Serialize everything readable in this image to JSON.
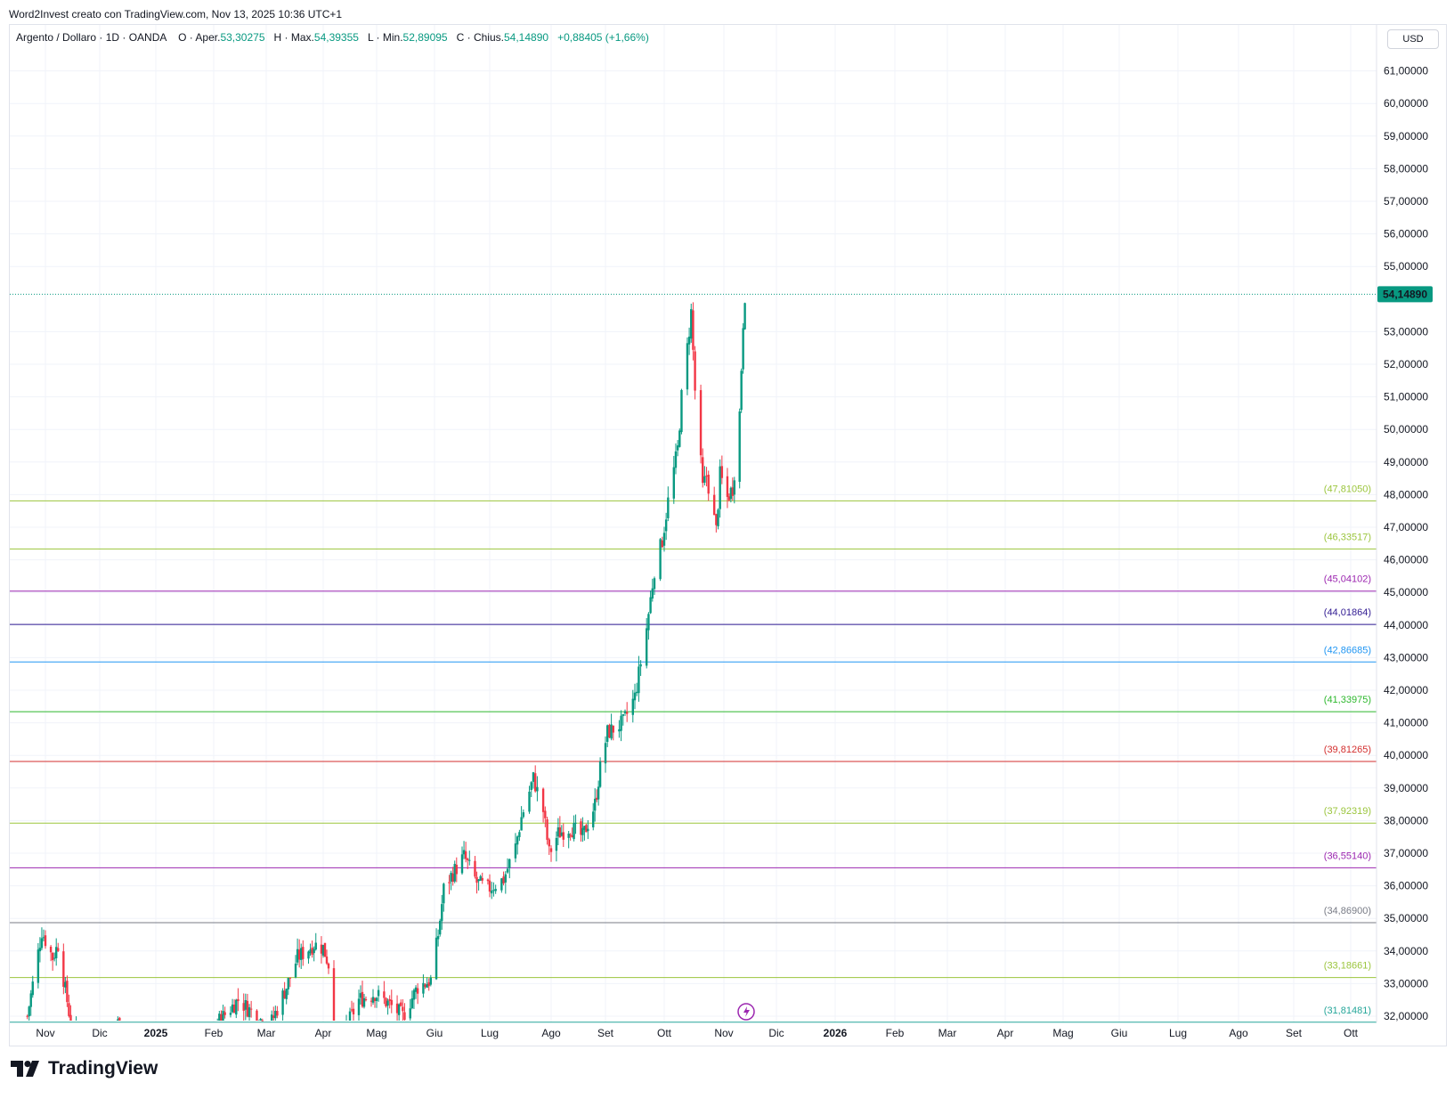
{
  "header": {
    "text": "Word2Invest creato con TradingView.com, Nov 13, 2025 10:36 UTC+1"
  },
  "legend": {
    "symbol": "Argento / Dollaro · 1D · OANDA",
    "open_label": "O · Aper.",
    "open": "53,30275",
    "high_label": "H · Max.",
    "high": "54,39355",
    "low_label": "L · Min.",
    "low": "52,89095",
    "close_label": "C · Chius.",
    "close": "54,14890",
    "change": "+0,88405 (+1,66%)"
  },
  "currency": "USD",
  "footer": {
    "brand": "TradingView"
  },
  "colors": {
    "up": "#089981",
    "down": "#f23645"
  },
  "chart_data": {
    "type": "candlestick",
    "ylim": [
      31.7,
      61.9
    ],
    "y_ticks": [
      "32,00000",
      "33,00000",
      "34,00000",
      "35,00000",
      "36,00000",
      "37,00000",
      "38,00000",
      "39,00000",
      "40,00000",
      "41,00000",
      "42,00000",
      "43,00000",
      "44,00000",
      "45,00000",
      "46,00000",
      "47,00000",
      "48,00000",
      "49,00000",
      "50,00000",
      "51,00000",
      "52,00000",
      "53,00000",
      "55,00000",
      "56,00000",
      "57,00000",
      "58,00000",
      "59,00000",
      "60,00000",
      "61,00000"
    ],
    "x_labels": [
      {
        "label": "Nov",
        "date": "2024-11-01"
      },
      {
        "label": "Dic",
        "date": "2024-12-01"
      },
      {
        "label": "2025",
        "date": "2025-01-01",
        "bold": true
      },
      {
        "label": "Feb",
        "date": "2025-02-01"
      },
      {
        "label": "Mar",
        "date": "2025-03-01"
      },
      {
        "label": "Apr",
        "date": "2025-04-01"
      },
      {
        "label": "Mag",
        "date": "2025-05-01"
      },
      {
        "label": "Giu",
        "date": "2025-06-01"
      },
      {
        "label": "Lug",
        "date": "2025-07-01"
      },
      {
        "label": "Ago",
        "date": "2025-08-01"
      },
      {
        "label": "Set",
        "date": "2025-09-01"
      },
      {
        "label": "Ott",
        "date": "2025-10-01"
      },
      {
        "label": "Nov",
        "date": "2025-11-01"
      },
      {
        "label": "Dic",
        "date": "2025-12-01"
      },
      {
        "label": "2026",
        "date": "2026-01-01",
        "bold": true
      },
      {
        "label": "Feb",
        "date": "2026-02-01"
      },
      {
        "label": "Mar",
        "date": "2026-03-01"
      },
      {
        "label": "Apr",
        "date": "2026-04-01"
      },
      {
        "label": "Mag",
        "date": "2026-05-01"
      },
      {
        "label": "Giu",
        "date": "2026-06-01"
      },
      {
        "label": "Lug",
        "date": "2026-07-01"
      },
      {
        "label": "Ago",
        "date": "2026-08-01"
      },
      {
        "label": "Set",
        "date": "2026-09-01"
      },
      {
        "label": "Ott",
        "date": "2026-10-01"
      }
    ],
    "last_price": {
      "value": 54.1489,
      "label": "54,14890",
      "color": "#089981"
    },
    "levels": [
      {
        "value": 47.8105,
        "label": "(47,81050)",
        "color": "#9bc53d"
      },
      {
        "value": 46.33517,
        "label": "(46,33517)",
        "color": "#9bc53d"
      },
      {
        "value": 45.04102,
        "label": "(45,04102)",
        "color": "#9c27b0"
      },
      {
        "value": 44.01864,
        "label": "(44,01864)",
        "color": "#311b92"
      },
      {
        "value": 42.86685,
        "label": "(42,86685)",
        "color": "#2196f3"
      },
      {
        "value": 41.33975,
        "label": "(41,33975)",
        "color": "#2eb82e"
      },
      {
        "value": 39.81265,
        "label": "(39,81265)",
        "color": "#d32f2f"
      },
      {
        "value": 37.92319,
        "label": "(37,92319)",
        "color": "#9bc53d"
      },
      {
        "value": 36.5514,
        "label": "(36,55140)",
        "color": "#9c27b0"
      },
      {
        "value": 34.869,
        "label": "(34,86900)",
        "color": "#787b86"
      },
      {
        "value": 33.18661,
        "label": "(33,18661)",
        "color": "#9bc53d"
      },
      {
        "value": 31.81481,
        "label": "(31,81481)",
        "color": "#26a69a"
      }
    ],
    "price_path": [
      {
        "date": "2024-10-22",
        "p": 32.0
      },
      {
        "date": "2024-10-30",
        "p": 34.6
      },
      {
        "date": "2024-11-05",
        "p": 33.8
      },
      {
        "date": "2024-11-08",
        "p": 34.2
      },
      {
        "date": "2024-11-12",
        "p": 32.8
      },
      {
        "date": "2024-11-15",
        "p": 31.8
      },
      {
        "date": "2024-11-18",
        "p": 31.5
      },
      {
        "date": "2024-12-06",
        "p": 31.2
      },
      {
        "date": "2024-12-12",
        "p": 31.9
      },
      {
        "date": "2024-12-20",
        "p": 30.0
      },
      {
        "date": "2025-01-31",
        "p": 31.4
      },
      {
        "date": "2025-02-03",
        "p": 31.8
      },
      {
        "date": "2025-02-14",
        "p": 32.5
      },
      {
        "date": "2025-02-26",
        "p": 31.9
      },
      {
        "date": "2025-03-03",
        "p": 31.7
      },
      {
        "date": "2025-03-12",
        "p": 32.9
      },
      {
        "date": "2025-03-18",
        "p": 33.8
      },
      {
        "date": "2025-03-27",
        "p": 34.2
      },
      {
        "date": "2025-04-01",
        "p": 34.1
      },
      {
        "date": "2025-04-04",
        "p": 33.6
      },
      {
        "date": "2025-04-07",
        "p": 30.6
      },
      {
        "date": "2025-04-10",
        "p": 31.2
      },
      {
        "date": "2025-04-16",
        "p": 31.9
      },
      {
        "date": "2025-04-21",
        "p": 32.5
      },
      {
        "date": "2025-04-30",
        "p": 32.7
      },
      {
        "date": "2025-05-07",
        "p": 32.4
      },
      {
        "date": "2025-05-15",
        "p": 32.0
      },
      {
        "date": "2025-05-23",
        "p": 32.9
      },
      {
        "date": "2025-05-30",
        "p": 33.1
      },
      {
        "date": "2025-06-03",
        "p": 34.5
      },
      {
        "date": "2025-06-06",
        "p": 35.9
      },
      {
        "date": "2025-06-10",
        "p": 36.3
      },
      {
        "date": "2025-06-17",
        "p": 36.9
      },
      {
        "date": "2025-06-24",
        "p": 36.1
      },
      {
        "date": "2025-06-30",
        "p": 35.9
      },
      {
        "date": "2025-07-08",
        "p": 36.2
      },
      {
        "date": "2025-07-14",
        "p": 37.2
      },
      {
        "date": "2025-07-17",
        "p": 38.1
      },
      {
        "date": "2025-07-23",
        "p": 39.3
      },
      {
        "date": "2025-07-28",
        "p": 38.3
      },
      {
        "date": "2025-07-31",
        "p": 37.0
      },
      {
        "date": "2025-08-05",
        "p": 37.6
      },
      {
        "date": "2025-08-12",
        "p": 37.8
      },
      {
        "date": "2025-08-19",
        "p": 37.5
      },
      {
        "date": "2025-08-26",
        "p": 38.5
      },
      {
        "date": "2025-08-29",
        "p": 39.6
      },
      {
        "date": "2025-09-02",
        "p": 40.7
      },
      {
        "date": "2025-09-10",
        "p": 41.0
      },
      {
        "date": "2025-09-16",
        "p": 41.8
      },
      {
        "date": "2025-09-22",
        "p": 43.9
      },
      {
        "date": "2025-09-26",
        "p": 45.7
      },
      {
        "date": "2025-09-30",
        "p": 46.6
      },
      {
        "date": "2025-10-03",
        "p": 47.8
      },
      {
        "date": "2025-10-08",
        "p": 49.4
      },
      {
        "date": "2025-10-10",
        "p": 51.0
      },
      {
        "date": "2025-10-13",
        "p": 52.5
      },
      {
        "date": "2025-10-15",
        "p": 53.6
      },
      {
        "date": "2025-10-17",
        "p": 51.2
      },
      {
        "date": "2025-10-21",
        "p": 48.2
      },
      {
        "date": "2025-10-23",
        "p": 48.6
      },
      {
        "date": "2025-10-28",
        "p": 46.9
      },
      {
        "date": "2025-10-30",
        "p": 48.6
      },
      {
        "date": "2025-11-03",
        "p": 47.9
      },
      {
        "date": "2025-11-06",
        "p": 48.2
      },
      {
        "date": "2025-11-07",
        "p": 48.7
      },
      {
        "date": "2025-11-10",
        "p": 50.5
      },
      {
        "date": "2025-11-12",
        "p": 53.3
      },
      {
        "date": "2025-11-13",
        "p": 54.1489
      }
    ]
  }
}
